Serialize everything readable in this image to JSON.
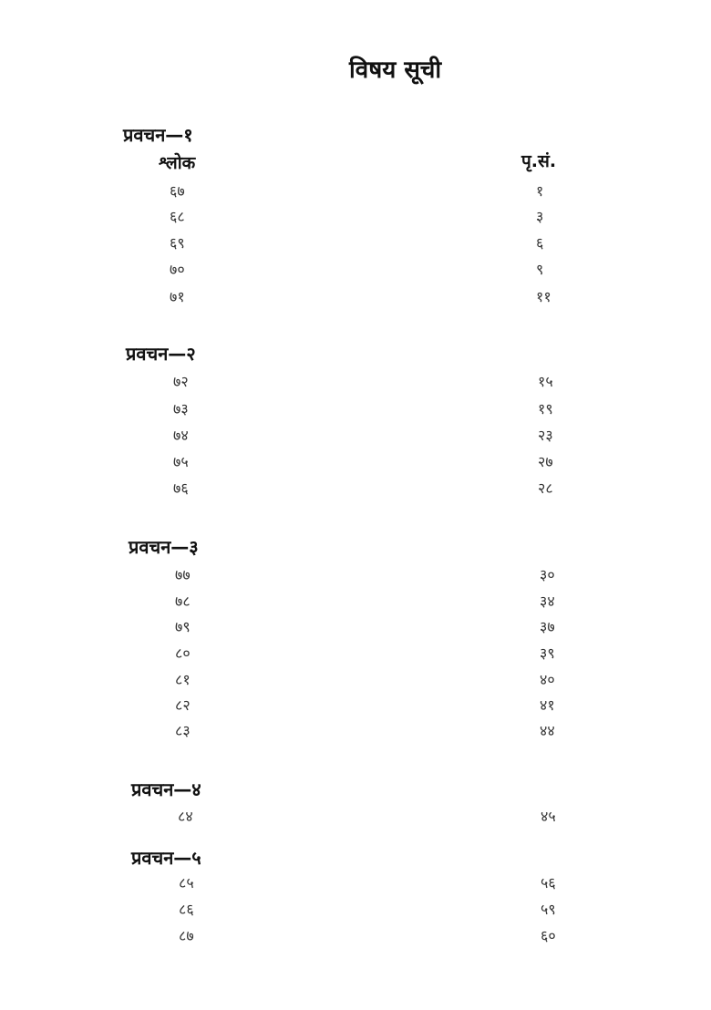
{
  "title": "विषय सूची",
  "columns": {
    "shloka": "श्लोक",
    "page": "पृ.सं."
  },
  "sections": [
    {
      "heading": "प्रवचन—१",
      "rows": [
        [
          "६७",
          "१"
        ],
        [
          "६८",
          "३"
        ],
        [
          "६९",
          "६"
        ],
        [
          "७०",
          "९"
        ],
        [
          "७१",
          "११"
        ]
      ]
    },
    {
      "heading": "प्रवचन—२",
      "rows": [
        [
          "७२",
          "१५"
        ],
        [
          "७३",
          "१९"
        ],
        [
          "७४",
          "२३"
        ],
        [
          "७५",
          "२७"
        ],
        [
          "७६",
          "२८"
        ]
      ]
    },
    {
      "heading": "प्रवचन—३",
      "rows": [
        [
          "७७",
          "३०"
        ],
        [
          "७८",
          "३४"
        ],
        [
          "७९",
          "३७"
        ],
        [
          "८०",
          "३९"
        ],
        [
          "८१",
          "४०"
        ],
        [
          "८२",
          "४१"
        ],
        [
          "८३",
          "४४"
        ]
      ]
    },
    {
      "heading": "प्रवचन—४",
      "rows": [
        [
          "८४",
          "४५"
        ]
      ]
    },
    {
      "heading": "प्रवचन—५",
      "rows": [
        [
          "८५",
          "५६"
        ],
        [
          "८६",
          "५९"
        ],
        [
          "८७",
          "६०"
        ]
      ]
    }
  ]
}
